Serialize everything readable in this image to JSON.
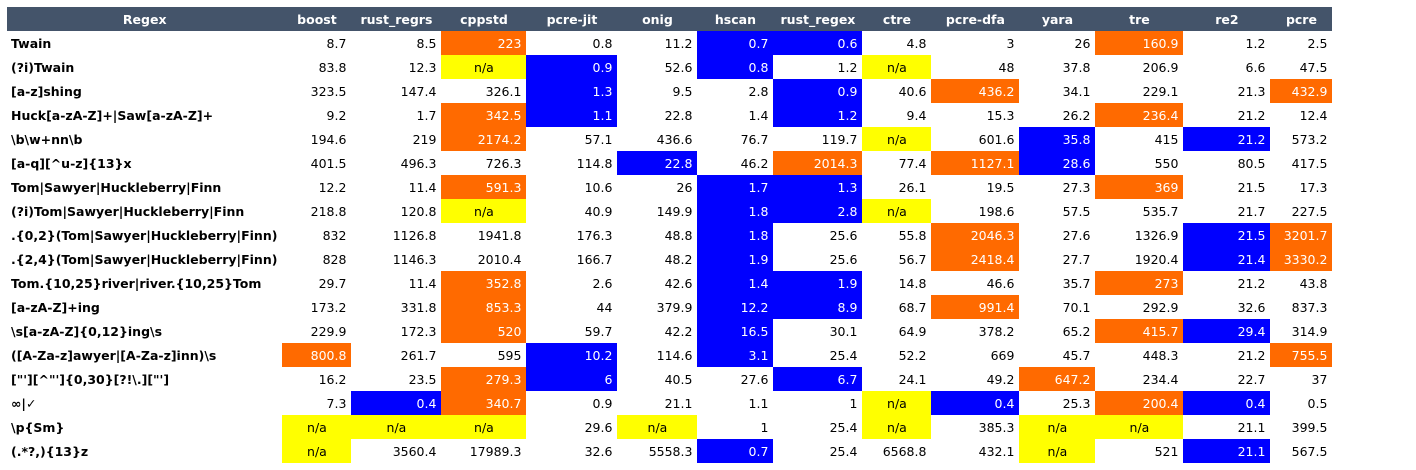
{
  "colors": {
    "header_bg": "#44546a",
    "orange": "#ff6a00",
    "blue": "#0000ff",
    "yellow": "#ffff00"
  },
  "columns": [
    "Regex",
    "boost",
    "rust_regrs",
    "cppstd",
    "pcre-jit",
    "onig",
    "hscan",
    "rust_regex",
    "ctre",
    "pcre-dfa",
    "yara",
    "tre",
    "re2",
    "pcre"
  ],
  "rows": [
    {
      "regex": "Twain",
      "cells": [
        {
          "v": "8.7",
          "c": ""
        },
        {
          "v": "8.5",
          "c": ""
        },
        {
          "v": "223",
          "c": "orange"
        },
        {
          "v": "0.8",
          "c": ""
        },
        {
          "v": "11.2",
          "c": ""
        },
        {
          "v": "0.7",
          "c": "blue"
        },
        {
          "v": "0.6",
          "c": "blue"
        },
        {
          "v": "4.8",
          "c": ""
        },
        {
          "v": "3",
          "c": ""
        },
        {
          "v": "26",
          "c": ""
        },
        {
          "v": "160.9",
          "c": "orange"
        },
        {
          "v": "1.2",
          "c": ""
        },
        {
          "v": "2.5",
          "c": ""
        }
      ]
    },
    {
      "regex": "(?i)Twain",
      "cells": [
        {
          "v": "83.8",
          "c": ""
        },
        {
          "v": "12.3",
          "c": ""
        },
        {
          "v": "n/a",
          "c": "yellow"
        },
        {
          "v": "0.9",
          "c": "blue"
        },
        {
          "v": "52.6",
          "c": ""
        },
        {
          "v": "0.8",
          "c": "blue"
        },
        {
          "v": "1.2",
          "c": ""
        },
        {
          "v": "n/a",
          "c": "yellow"
        },
        {
          "v": "48",
          "c": ""
        },
        {
          "v": "37.8",
          "c": ""
        },
        {
          "v": "206.9",
          "c": ""
        },
        {
          "v": "6.6",
          "c": ""
        },
        {
          "v": "47.5",
          "c": ""
        }
      ]
    },
    {
      "regex": "[a-z]shing",
      "cells": [
        {
          "v": "323.5",
          "c": ""
        },
        {
          "v": "147.4",
          "c": ""
        },
        {
          "v": "326.1",
          "c": ""
        },
        {
          "v": "1.3",
          "c": "blue"
        },
        {
          "v": "9.5",
          "c": ""
        },
        {
          "v": "2.8",
          "c": ""
        },
        {
          "v": "0.9",
          "c": "blue"
        },
        {
          "v": "40.6",
          "c": ""
        },
        {
          "v": "436.2",
          "c": "orange"
        },
        {
          "v": "34.1",
          "c": ""
        },
        {
          "v": "229.1",
          "c": ""
        },
        {
          "v": "21.3",
          "c": ""
        },
        {
          "v": "432.9",
          "c": "orange"
        }
      ]
    },
    {
      "regex": "Huck[a-zA-Z]+|Saw[a-zA-Z]+",
      "cells": [
        {
          "v": "9.2",
          "c": ""
        },
        {
          "v": "1.7",
          "c": ""
        },
        {
          "v": "342.5",
          "c": "orange"
        },
        {
          "v": "1.1",
          "c": "blue"
        },
        {
          "v": "22.8",
          "c": ""
        },
        {
          "v": "1.4",
          "c": ""
        },
        {
          "v": "1.2",
          "c": "blue"
        },
        {
          "v": "9.4",
          "c": ""
        },
        {
          "v": "15.3",
          "c": ""
        },
        {
          "v": "26.2",
          "c": ""
        },
        {
          "v": "236.4",
          "c": "orange"
        },
        {
          "v": "21.2",
          "c": ""
        },
        {
          "v": "12.4",
          "c": ""
        }
      ]
    },
    {
      "regex": "\\b\\w+nn\\b",
      "cells": [
        {
          "v": "194.6",
          "c": ""
        },
        {
          "v": "219",
          "c": ""
        },
        {
          "v": "2174.2",
          "c": "orange"
        },
        {
          "v": "57.1",
          "c": ""
        },
        {
          "v": "436.6",
          "c": ""
        },
        {
          "v": "76.7",
          "c": ""
        },
        {
          "v": "119.7",
          "c": ""
        },
        {
          "v": "n/a",
          "c": "yellow"
        },
        {
          "v": "601.6",
          "c": ""
        },
        {
          "v": "35.8",
          "c": "blue"
        },
        {
          "v": "415",
          "c": ""
        },
        {
          "v": "21.2",
          "c": "blue"
        },
        {
          "v": "573.2",
          "c": ""
        }
      ]
    },
    {
      "regex": "[a-q][^u-z]{13}x",
      "cells": [
        {
          "v": "401.5",
          "c": ""
        },
        {
          "v": "496.3",
          "c": ""
        },
        {
          "v": "726.3",
          "c": ""
        },
        {
          "v": "114.8",
          "c": ""
        },
        {
          "v": "22.8",
          "c": "blue"
        },
        {
          "v": "46.2",
          "c": ""
        },
        {
          "v": "2014.3",
          "c": "orange"
        },
        {
          "v": "77.4",
          "c": ""
        },
        {
          "v": "1127.1",
          "c": "orange"
        },
        {
          "v": "28.6",
          "c": "blue"
        },
        {
          "v": "550",
          "c": ""
        },
        {
          "v": "80.5",
          "c": ""
        },
        {
          "v": "417.5",
          "c": ""
        }
      ]
    },
    {
      "regex": "Tom|Sawyer|Huckleberry|Finn",
      "cells": [
        {
          "v": "12.2",
          "c": ""
        },
        {
          "v": "11.4",
          "c": ""
        },
        {
          "v": "591.3",
          "c": "orange"
        },
        {
          "v": "10.6",
          "c": ""
        },
        {
          "v": "26",
          "c": ""
        },
        {
          "v": "1.7",
          "c": "blue"
        },
        {
          "v": "1.3",
          "c": "blue"
        },
        {
          "v": "26.1",
          "c": ""
        },
        {
          "v": "19.5",
          "c": ""
        },
        {
          "v": "27.3",
          "c": ""
        },
        {
          "v": "369",
          "c": "orange"
        },
        {
          "v": "21.5",
          "c": ""
        },
        {
          "v": "17.3",
          "c": ""
        }
      ]
    },
    {
      "regex": "(?i)Tom|Sawyer|Huckleberry|Finn",
      "cells": [
        {
          "v": "218.8",
          "c": ""
        },
        {
          "v": "120.8",
          "c": ""
        },
        {
          "v": "n/a",
          "c": "yellow"
        },
        {
          "v": "40.9",
          "c": ""
        },
        {
          "v": "149.9",
          "c": ""
        },
        {
          "v": "1.8",
          "c": "blue"
        },
        {
          "v": "2.8",
          "c": "blue"
        },
        {
          "v": "n/a",
          "c": "yellow"
        },
        {
          "v": "198.6",
          "c": ""
        },
        {
          "v": "57.5",
          "c": ""
        },
        {
          "v": "535.7",
          "c": ""
        },
        {
          "v": "21.7",
          "c": ""
        },
        {
          "v": "227.5",
          "c": ""
        }
      ]
    },
    {
      "regex": ".{0,2}(Tom|Sawyer|Huckleberry|Finn)",
      "cells": [
        {
          "v": "832",
          "c": ""
        },
        {
          "v": "1126.8",
          "c": ""
        },
        {
          "v": "1941.8",
          "c": ""
        },
        {
          "v": "176.3",
          "c": ""
        },
        {
          "v": "48.8",
          "c": ""
        },
        {
          "v": "1.8",
          "c": "blue"
        },
        {
          "v": "25.6",
          "c": ""
        },
        {
          "v": "55.8",
          "c": ""
        },
        {
          "v": "2046.3",
          "c": "orange"
        },
        {
          "v": "27.6",
          "c": ""
        },
        {
          "v": "1326.9",
          "c": ""
        },
        {
          "v": "21.5",
          "c": "blue"
        },
        {
          "v": "3201.7",
          "c": "orange"
        }
      ]
    },
    {
      "regex": ".{2,4}(Tom|Sawyer|Huckleberry|Finn)",
      "cells": [
        {
          "v": "828",
          "c": ""
        },
        {
          "v": "1146.3",
          "c": ""
        },
        {
          "v": "2010.4",
          "c": ""
        },
        {
          "v": "166.7",
          "c": ""
        },
        {
          "v": "48.2",
          "c": ""
        },
        {
          "v": "1.9",
          "c": "blue"
        },
        {
          "v": "25.6",
          "c": ""
        },
        {
          "v": "56.7",
          "c": ""
        },
        {
          "v": "2418.4",
          "c": "orange"
        },
        {
          "v": "27.7",
          "c": ""
        },
        {
          "v": "1920.4",
          "c": ""
        },
        {
          "v": "21.4",
          "c": "blue"
        },
        {
          "v": "3330.2",
          "c": "orange"
        }
      ]
    },
    {
      "regex": "Tom.{10,25}river|river.{10,25}Tom",
      "cells": [
        {
          "v": "29.7",
          "c": ""
        },
        {
          "v": "11.4",
          "c": ""
        },
        {
          "v": "352.8",
          "c": "orange"
        },
        {
          "v": "2.6",
          "c": ""
        },
        {
          "v": "42.6",
          "c": ""
        },
        {
          "v": "1.4",
          "c": "blue"
        },
        {
          "v": "1.9",
          "c": "blue"
        },
        {
          "v": "14.8",
          "c": ""
        },
        {
          "v": "46.6",
          "c": ""
        },
        {
          "v": "35.7",
          "c": ""
        },
        {
          "v": "273",
          "c": "orange"
        },
        {
          "v": "21.2",
          "c": ""
        },
        {
          "v": "43.8",
          "c": ""
        }
      ]
    },
    {
      "regex": "[a-zA-Z]+ing",
      "cells": [
        {
          "v": "173.2",
          "c": ""
        },
        {
          "v": "331.8",
          "c": ""
        },
        {
          "v": "853.3",
          "c": "orange"
        },
        {
          "v": "44",
          "c": ""
        },
        {
          "v": "379.9",
          "c": ""
        },
        {
          "v": "12.2",
          "c": "blue"
        },
        {
          "v": "8.9",
          "c": "blue"
        },
        {
          "v": "68.7",
          "c": ""
        },
        {
          "v": "991.4",
          "c": "orange"
        },
        {
          "v": "70.1",
          "c": ""
        },
        {
          "v": "292.9",
          "c": ""
        },
        {
          "v": "32.6",
          "c": ""
        },
        {
          "v": "837.3",
          "c": ""
        }
      ]
    },
    {
      "regex": "\\s[a-zA-Z]{0,12}ing\\s",
      "cells": [
        {
          "v": "229.9",
          "c": ""
        },
        {
          "v": "172.3",
          "c": ""
        },
        {
          "v": "520",
          "c": "orange"
        },
        {
          "v": "59.7",
          "c": ""
        },
        {
          "v": "42.2",
          "c": ""
        },
        {
          "v": "16.5",
          "c": "blue"
        },
        {
          "v": "30.1",
          "c": ""
        },
        {
          "v": "64.9",
          "c": ""
        },
        {
          "v": "378.2",
          "c": ""
        },
        {
          "v": "65.2",
          "c": ""
        },
        {
          "v": "415.7",
          "c": "orange"
        },
        {
          "v": "29.4",
          "c": "blue"
        },
        {
          "v": "314.9",
          "c": ""
        }
      ]
    },
    {
      "regex": "([A-Za-z]awyer|[A-Za-z]inn)\\s",
      "cells": [
        {
          "v": "800.8",
          "c": "orange"
        },
        {
          "v": "261.7",
          "c": ""
        },
        {
          "v": "595",
          "c": ""
        },
        {
          "v": "10.2",
          "c": "blue"
        },
        {
          "v": "114.6",
          "c": ""
        },
        {
          "v": "3.1",
          "c": "blue"
        },
        {
          "v": "25.4",
          "c": ""
        },
        {
          "v": "52.2",
          "c": ""
        },
        {
          "v": "669",
          "c": ""
        },
        {
          "v": "45.7",
          "c": ""
        },
        {
          "v": "448.3",
          "c": ""
        },
        {
          "v": "21.2",
          "c": ""
        },
        {
          "v": "755.5",
          "c": "orange"
        }
      ]
    },
    {
      "regex": "[\"'][^\"']{0,30}[?!\\.][\"']",
      "cells": [
        {
          "v": "16.2",
          "c": ""
        },
        {
          "v": "23.5",
          "c": ""
        },
        {
          "v": "279.3",
          "c": "orange"
        },
        {
          "v": "6",
          "c": "blue"
        },
        {
          "v": "40.5",
          "c": ""
        },
        {
          "v": "27.6",
          "c": ""
        },
        {
          "v": "6.7",
          "c": "blue"
        },
        {
          "v": "24.1",
          "c": ""
        },
        {
          "v": "49.2",
          "c": ""
        },
        {
          "v": "647.2",
          "c": "orange"
        },
        {
          "v": "234.4",
          "c": ""
        },
        {
          "v": "22.7",
          "c": ""
        },
        {
          "v": "37",
          "c": ""
        }
      ]
    },
    {
      "regex": "∞|✓",
      "cells": [
        {
          "v": "7.3",
          "c": ""
        },
        {
          "v": "0.4",
          "c": "blue"
        },
        {
          "v": "340.7",
          "c": "orange"
        },
        {
          "v": "0.9",
          "c": ""
        },
        {
          "v": "21.1",
          "c": ""
        },
        {
          "v": "1.1",
          "c": ""
        },
        {
          "v": "1",
          "c": ""
        },
        {
          "v": "n/a",
          "c": "yellow"
        },
        {
          "v": "0.4",
          "c": "blue"
        },
        {
          "v": "25.3",
          "c": ""
        },
        {
          "v": "200.4",
          "c": "orange"
        },
        {
          "v": "0.4",
          "c": "blue"
        },
        {
          "v": "0.5",
          "c": ""
        }
      ]
    },
    {
      "regex": "\\p{Sm}",
      "cells": [
        {
          "v": "n/a",
          "c": "yellow"
        },
        {
          "v": "n/a",
          "c": "yellow"
        },
        {
          "v": "n/a",
          "c": "yellow"
        },
        {
          "v": "29.6",
          "c": ""
        },
        {
          "v": "n/a",
          "c": "yellow"
        },
        {
          "v": "1",
          "c": ""
        },
        {
          "v": "25.4",
          "c": ""
        },
        {
          "v": "n/a",
          "c": "yellow"
        },
        {
          "v": "385.3",
          "c": ""
        },
        {
          "v": "n/a",
          "c": "yellow"
        },
        {
          "v": "n/a",
          "c": "yellow"
        },
        {
          "v": "21.1",
          "c": ""
        },
        {
          "v": "399.5",
          "c": ""
        }
      ]
    },
    {
      "regex": "(.*?,){13}z",
      "cells": [
        {
          "v": "n/a",
          "c": "yellow"
        },
        {
          "v": "3560.4",
          "c": ""
        },
        {
          "v": "17989.3",
          "c": ""
        },
        {
          "v": "32.6",
          "c": ""
        },
        {
          "v": "5558.3",
          "c": ""
        },
        {
          "v": "0.7",
          "c": "blue"
        },
        {
          "v": "25.4",
          "c": ""
        },
        {
          "v": "6568.8",
          "c": ""
        },
        {
          "v": "432.1",
          "c": ""
        },
        {
          "v": "n/a",
          "c": "yellow"
        },
        {
          "v": "521",
          "c": ""
        },
        {
          "v": "21.1",
          "c": "blue"
        },
        {
          "v": "567.5",
          "c": ""
        }
      ]
    }
  ]
}
